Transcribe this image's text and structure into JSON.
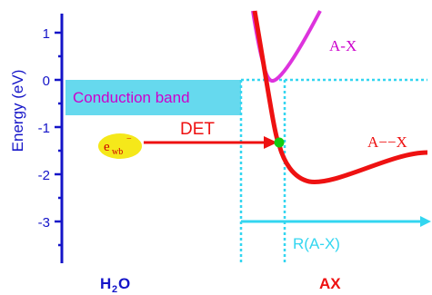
{
  "axis": {
    "y_label": "Energy (eV)",
    "ticks": [
      "1",
      "0",
      "-1",
      "-2",
      "-3"
    ],
    "color": "#1414c8"
  },
  "labels": {
    "conduction_band": "Conduction band",
    "det": "DET",
    "ewb": "e",
    "ewb_sub": "wb",
    "ewb_sup": "−",
    "ax_curve_upper": "A-X",
    "ax_curve_lower": "A−−X",
    "r_axis": "R(A-X)",
    "h2o_h": "H",
    "h2o_sub": "2",
    "h2o_o": "O",
    "ax_bottom": "AX"
  },
  "colors": {
    "axis_blue": "#1414c8",
    "conduction_band_fill": "#66d9ee",
    "conduction_band_text": "#cc00cc",
    "det_red": "#ee1111",
    "curve_magenta": "#dd33dd",
    "curve_red": "#ee1111",
    "dotted_cyan": "#33d6f0",
    "marker_green": "#11cc11",
    "ewb_fill": "#f5e81a",
    "ewb_text": "#cc0000"
  }
}
